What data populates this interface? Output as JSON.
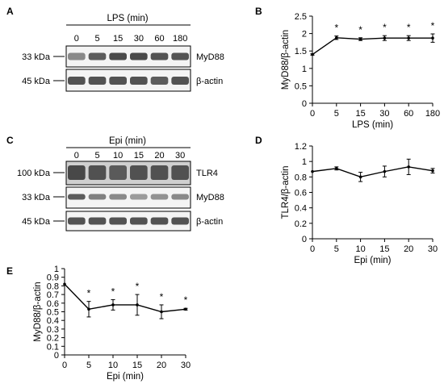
{
  "panels": {
    "A": {
      "letter": "A",
      "header": "LPS (min)",
      "lane_labels": [
        "0",
        "5",
        "15",
        "30",
        "60",
        "180"
      ],
      "blots": [
        {
          "size": "33 kDa",
          "target": "MyD88",
          "intensity": [
            0.55,
            0.8,
            0.9,
            0.9,
            0.85,
            0.85
          ]
        },
        {
          "size": "45 kDa",
          "target": "β-actin",
          "intensity": [
            0.85,
            0.85,
            0.85,
            0.85,
            0.8,
            0.85
          ]
        }
      ]
    },
    "C": {
      "letter": "C",
      "header": "Epi (min)",
      "lane_labels": [
        "0",
        "5",
        "10",
        "15",
        "20",
        "30"
      ],
      "blots": [
        {
          "size": "100 kDa",
          "target": "TLR4",
          "intensity": [
            0.9,
            0.85,
            0.8,
            0.85,
            0.85,
            0.85
          ]
        },
        {
          "size": "33 kDa",
          "target": "MyD88",
          "intensity": [
            0.8,
            0.6,
            0.55,
            0.45,
            0.5,
            0.55
          ]
        },
        {
          "size": "45 kDa",
          "target": "β-actin",
          "intensity": [
            0.85,
            0.85,
            0.85,
            0.85,
            0.85,
            0.85
          ]
        }
      ]
    }
  },
  "chart_data": [
    {
      "id": "B",
      "letter": "B",
      "type": "line",
      "x_tick_labels": [
        "0",
        "5",
        "15",
        "30",
        "60",
        "180"
      ],
      "x": [
        0,
        5,
        15,
        30,
        60,
        180
      ],
      "series": [
        {
          "values": [
            1.4,
            1.88,
            1.84,
            1.87,
            1.87,
            1.87
          ],
          "errors": [
            0.02,
            0.05,
            0.04,
            0.07,
            0.07,
            0.12
          ]
        }
      ],
      "significance": [
        "",
        "*",
        "*",
        "*",
        "*",
        "*"
      ],
      "xlabel": "LPS (min)",
      "ylabel": "MyD88/β-actin",
      "ylim": [
        0,
        2.5
      ],
      "yticks": [
        "0",
        "0.5",
        "1",
        "1.5",
        "2",
        "2.5"
      ],
      "ytick_values": [
        0,
        0.5,
        1,
        1.5,
        2,
        2.5
      ],
      "grid": false
    },
    {
      "id": "D",
      "letter": "D",
      "type": "line",
      "x_tick_labels": [
        "0",
        "5",
        "10",
        "15",
        "20",
        "30"
      ],
      "x": [
        0,
        5,
        10,
        15,
        20,
        30
      ],
      "series": [
        {
          "values": [
            0.87,
            0.91,
            0.8,
            0.87,
            0.93,
            0.88
          ],
          "errors": [
            0.0,
            0.02,
            0.06,
            0.07,
            0.1,
            0.03
          ]
        }
      ],
      "significance": [
        "",
        "",
        "",
        "",
        "",
        ""
      ],
      "xlabel": "Epi (min)",
      "ylabel": "TLR4/β-actin",
      "ylim": [
        0,
        1.2
      ],
      "yticks": [
        "0",
        "0.2",
        "0.4",
        "0.6",
        "0.8",
        "1",
        "1.2"
      ],
      "ytick_values": [
        0,
        0.2,
        0.4,
        0.6,
        0.8,
        1,
        1.2
      ],
      "grid": false
    },
    {
      "id": "E",
      "letter": "E",
      "type": "line",
      "x_tick_labels": [
        "0",
        "5",
        "10",
        "15",
        "20",
        "30"
      ],
      "x": [
        0,
        5,
        10,
        15,
        20,
        30
      ],
      "series": [
        {
          "values": [
            0.82,
            0.53,
            0.58,
            0.58,
            0.5,
            0.53
          ],
          "errors": [
            0.0,
            0.09,
            0.06,
            0.12,
            0.08,
            0.01
          ]
        }
      ],
      "significance": [
        "",
        "*",
        "*",
        "*",
        "*",
        "*"
      ],
      "xlabel": "Epi (min)",
      "ylabel": "MyD88/β-actin",
      "ylim": [
        0,
        1
      ],
      "yticks": [
        "0",
        "0.1",
        "0.2",
        "0.3",
        "0.4",
        "0.5",
        "0.6",
        "0.7",
        "0.8",
        "0.9",
        "1"
      ],
      "ytick_values": [
        0,
        0.1,
        0.2,
        0.3,
        0.4,
        0.5,
        0.6,
        0.7,
        0.8,
        0.9,
        1
      ],
      "grid": false
    }
  ]
}
